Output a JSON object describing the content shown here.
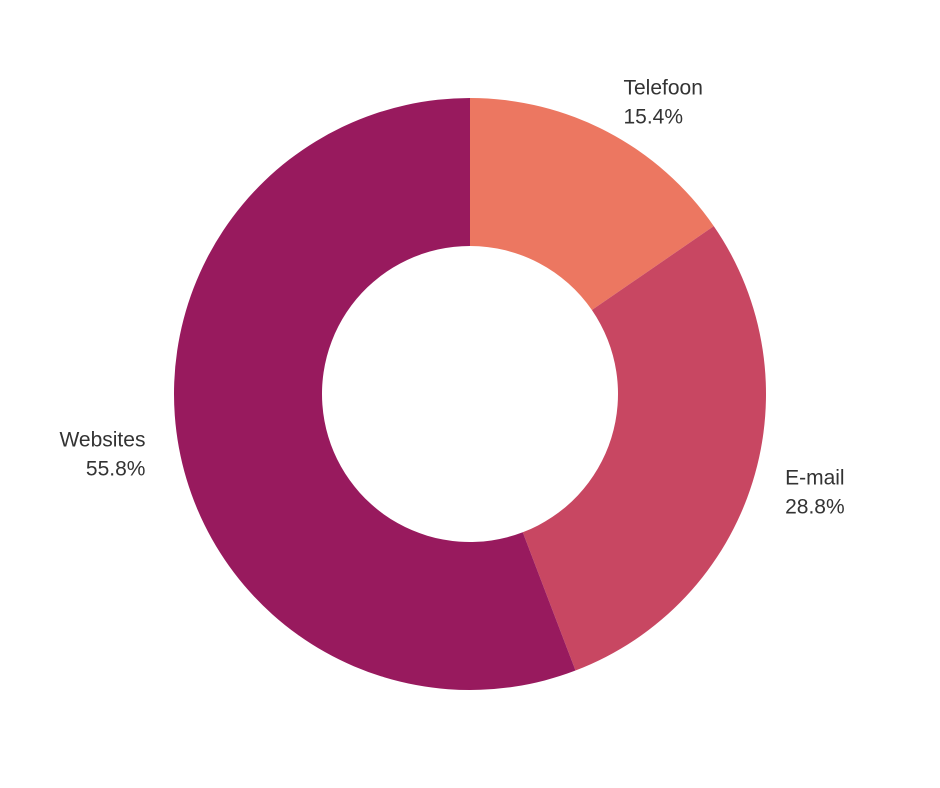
{
  "chart_data": {
    "type": "pie",
    "donut": true,
    "slices": [
      {
        "label": "Telefoon",
        "value": 15.4,
        "value_label": "15.4%",
        "color": "#EC7761"
      },
      {
        "label": "E-mail",
        "value": 28.8,
        "value_label": "28.8%",
        "color": "#C84762"
      },
      {
        "label": "Websites",
        "value": 55.8,
        "value_label": "55.8%",
        "color": "#981A5E"
      }
    ],
    "start_angle_deg": 0,
    "direction": "clockwise",
    "legend": "none"
  }
}
